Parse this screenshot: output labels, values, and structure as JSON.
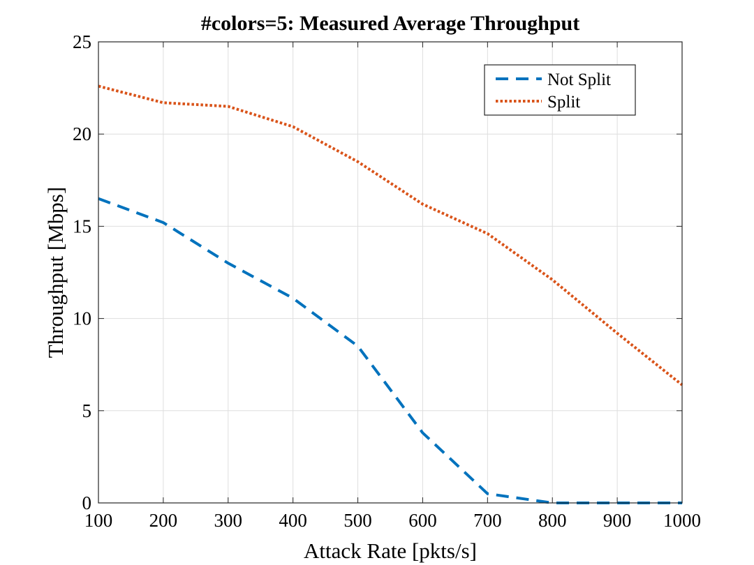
{
  "chart_data": {
    "type": "line",
    "title": "#colors=5: Measured Average Throughput",
    "xlabel": "Attack Rate [pkts/s]",
    "ylabel": "Throughput [Mbps]",
    "xlim": [
      100,
      1000
    ],
    "ylim": [
      0,
      25
    ],
    "xticks": [
      100,
      200,
      300,
      400,
      500,
      600,
      700,
      800,
      900,
      1000
    ],
    "yticks": [
      0,
      5,
      10,
      15,
      20,
      25
    ],
    "x": [
      100,
      200,
      300,
      400,
      500,
      600,
      700,
      800,
      900,
      1000
    ],
    "grid": true,
    "legend_position": "top-right",
    "series": [
      {
        "name": "Not Split",
        "color": "#0072BD",
        "style": "dashed",
        "values": [
          16.5,
          15.2,
          13.0,
          11.1,
          8.5,
          3.8,
          0.5,
          0.0,
          0.0,
          0.0
        ]
      },
      {
        "name": "Split",
        "color": "#D95319",
        "style": "dotted",
        "values": [
          22.6,
          21.7,
          21.5,
          20.4,
          18.5,
          16.2,
          14.6,
          12.1,
          9.2,
          6.4
        ]
      }
    ]
  }
}
